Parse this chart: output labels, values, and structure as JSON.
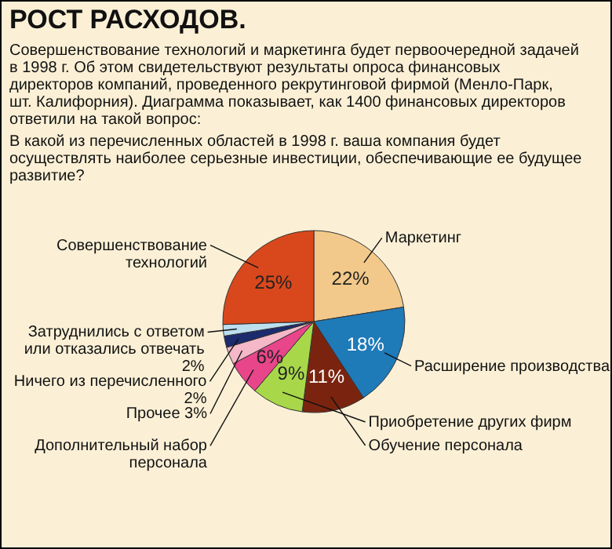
{
  "chart_data": {
    "type": "pie",
    "title": "РОСТ РАСХОДОВ.",
    "subtitle": "Совершенствование технологий и маркетинга будет первоочередной задачей в 1998 г. Об этом свидетельствуют результаты опроса финансовых директоров компаний, проведенного рекрутинговой фирмой (Менло-Парк, шт. Калифорния). Диаграмма показывает, как 1400 финансовых директоров ответили на такой вопрос:",
    "annotations": [
      "В какой из перечисленных областей в 1998 г. ваша компания будет осуществлять наиболее серьезные инвестиции, обеспечивающие ее будущее развитие?"
    ],
    "categories": [
      "Маркетинг",
      "Расширение производства",
      "Обучение персонала",
      "Приобретение других фирм",
      "Дополнительный набор персонала",
      "Прочее",
      "Ничего из перечисленного",
      "Затруднились с ответом или отказались отвечать",
      "Совершенствование технологий"
    ],
    "values": [
      22,
      18,
      11,
      9,
      6,
      3,
      2,
      2,
      25
    ],
    "value_labels": [
      "22%",
      "18%",
      "11%",
      "9%",
      "6%",
      "3%",
      "2%",
      "2%",
      "25%"
    ],
    "colors": [
      "#f2c98a",
      "#1f7ab8",
      "#7a2410",
      "#a8d84a",
      "#e8458a",
      "#f4b8c8",
      "#1c2a6e",
      "#bcdff0",
      "#d9481c"
    ],
    "legend": false
  }
}
